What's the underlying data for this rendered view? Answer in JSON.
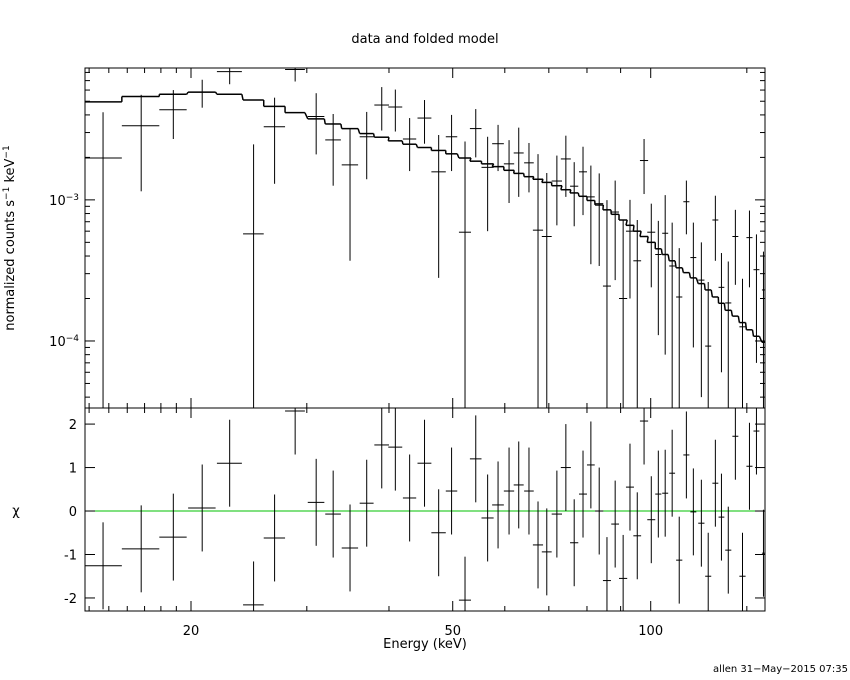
{
  "chart_data": [
    {
      "type": "errorbar",
      "title": "data and folded model",
      "ylabel": [
        {
          "text": "normalized counts s"
        },
        {
          "text": "−1",
          "sup": true
        },
        {
          "text": " keV"
        },
        {
          "text": "−1",
          "sup": true
        }
      ],
      "xscale": "log",
      "yscale": "log",
      "xlim": [
        13.8,
        149.2
      ],
      "ylim": [
        3.35e-05,
        0.0086
      ],
      "xticks": [
        20,
        50,
        100
      ],
      "xminor": [
        14,
        15,
        16,
        17,
        18,
        19,
        30,
        40,
        60,
        70,
        80,
        90,
        140
      ],
      "yticks": [
        {
          "value": 0.0001,
          "label": "10",
          "exponent": "−4"
        },
        {
          "value": 0.001,
          "label": "10",
          "exponent": "−3"
        }
      ],
      "yminor": [
        4e-05,
        5e-05,
        6e-05,
        7e-05,
        8e-05,
        9e-05,
        0.0002,
        0.0003,
        0.0004,
        0.0005,
        0.0006,
        0.0007,
        0.0008,
        0.0009,
        0.002,
        0.003,
        0.004,
        0.005,
        0.006,
        0.007,
        0.008
      ],
      "color": "#000000",
      "x": [
        14.7,
        16.8,
        18.8,
        20.8,
        22.9,
        24.9,
        26.8,
        28.8,
        31.0,
        32.9,
        34.9,
        37.0,
        39.0,
        40.9,
        43.0,
        45.3,
        47.6,
        49.8,
        52.2,
        54.2,
        56.5,
        58.6,
        60.9,
        63.0,
        65.3,
        67.4,
        69.5,
        72.0,
        74.3,
        76.5,
        78.9,
        81.1,
        83.5,
        85.8,
        88.3,
        90.8,
        93.0,
        95.4,
        97.7,
        100.2,
        102.7,
        105.2,
        107.8,
        110.5,
        113.3,
        116.1,
        119.4,
        122.3,
        125.4,
        128.1,
        131.2,
        134.5,
        137.9,
        141.3,
        144.8,
        148.4
      ],
      "xerr": [
        1.0,
        1.1,
        0.9,
        1.0,
        1.0,
        0.9,
        1.0,
        1.0,
        0.9,
        0.9,
        1.0,
        0.9,
        1.0,
        1.0,
        1.0,
        1.1,
        1.2,
        1.0,
        1.1,
        1.1,
        1.2,
        1.2,
        1.1,
        1.1,
        1.1,
        1.2,
        1.2,
        1.3,
        1.3,
        1.1,
        1.1,
        1.1,
        1.2,
        1.2,
        1.2,
        1.3,
        1.3,
        1.3,
        1.4,
        1.4,
        1.1,
        1.1,
        1.1,
        1.2,
        1.2,
        1.2,
        1.3,
        1.3,
        1.3,
        1.3,
        1.4,
        1.4,
        1.5,
        1.5,
        1.5,
        0.8
      ],
      "values": [
        0.00198,
        0.00335,
        0.00435,
        0.0058,
        0.0081,
        0.000574,
        0.0033,
        0.0084,
        0.0039,
        0.00266,
        0.00177,
        0.0028,
        0.0047,
        0.00455,
        0.0027,
        0.0038,
        0.00158,
        0.0028,
        0.00059,
        0.0032,
        0.0017,
        0.0025,
        0.0018,
        0.00215,
        0.00183,
        0.00061,
        0.00055,
        0.00136,
        0.00195,
        0.00125,
        0.00158,
        0.00105,
        0.00094,
        0.000245,
        0.00082,
        0.0002,
        0.0006,
        0.00037,
        0.0019,
        0.00059,
        0.00041,
        0.00058,
        0.00034,
        0.000205,
        0.00097,
        0.00039,
        0.00027,
        9.2e-05,
        0.00072,
        0.00024,
        0.000186,
        0.00055,
        0.000126,
        0.00054,
        0.00032,
        0.00023
      ],
      "yerr": [
        0.0022,
        0.0022,
        0.00165,
        0.0013,
        0.0015,
        0.0019,
        0.002,
        0.0015,
        0.0018,
        0.0014,
        0.0014,
        0.0014,
        0.0016,
        0.0015,
        0.0011,
        0.0013,
        0.0013,
        0.0012,
        0.002,
        0.0012,
        0.0011,
        0.0009,
        0.00085,
        0.0011,
        0.0007,
        0.0015,
        0.001,
        0.0007,
        0.0009,
        0.0006,
        0.0008,
        0.0007,
        0.0006,
        0.00075,
        0.00055,
        0.00052,
        0.0004,
        0.00035,
        0.0008,
        0.00035,
        0.0003,
        0.0005,
        0.00035,
        0.00025,
        0.0004,
        0.0003,
        0.00023,
        0.00017,
        0.00035,
        0.00018,
        0.00018,
        0.0003,
        0.00015,
        0.0003,
        0.00025,
        0.0002
      ],
      "model": [
        0.00495,
        0.0054,
        0.0056,
        0.0058,
        0.0056,
        0.0051,
        0.0046,
        0.00415,
        0.00375,
        0.00345,
        0.0032,
        0.00295,
        0.00278,
        0.00262,
        0.00248,
        0.00235,
        0.00224,
        0.00212,
        0.00198,
        0.00188,
        0.0018,
        0.00172,
        0.00162,
        0.00154,
        0.00146,
        0.0014,
        0.00133,
        0.00126,
        0.00118,
        0.00112,
        0.00106,
        0.00099,
        0.00092,
        0.00085,
        0.00079,
        0.00072,
        0.00066,
        0.0006,
        0.00055,
        0.0005,
        0.00045,
        0.00041,
        0.00037,
        0.00033,
        0.000305,
        0.00028,
        0.000255,
        0.00023,
        0.000205,
        0.000185,
        0.000165,
        0.00015,
        0.000135,
        0.00012,
        0.000108,
        9.8e-05
      ]
    },
    {
      "type": "errorbar",
      "xlabel": "Energy (keV)",
      "ylabel": "χ",
      "ylim": [
        -2.3,
        2.37
      ],
      "yticks": [
        -2,
        -1,
        0,
        1,
        2
      ],
      "reference_line": 0,
      "reference_color": "#00c000",
      "color": "#000000",
      "values": [
        -1.26,
        -0.87,
        -0.6,
        0.07,
        1.1,
        -2.16,
        -0.62,
        2.3,
        0.2,
        -0.07,
        -0.85,
        0.18,
        1.52,
        1.47,
        0.3,
        1.1,
        -0.5,
        0.46,
        -2.05,
        1.2,
        -0.16,
        0.14,
        0.46,
        0.6,
        0.46,
        -0.78,
        -0.94,
        -0.07,
        1.0,
        -0.73,
        0.39,
        1.06,
        0,
        -1.6,
        -0.3,
        -1.55,
        0.55,
        -0.57,
        2.07,
        -0.2,
        0.39,
        0.41,
        0.87,
        -1.13,
        1.29,
        -0.02,
        -0.28,
        -1.5,
        0.64,
        -0.14,
        -0.9,
        1.72,
        -1.5,
        1.03,
        1.84,
        -0.97
      ],
      "yerr": [
        1,
        1,
        1,
        1,
        1,
        1,
        1,
        1,
        1,
        1,
        1,
        1,
        1,
        1,
        1,
        1,
        1,
        1,
        1,
        1,
        1,
        1,
        1,
        1,
        1,
        1,
        1,
        1,
        1,
        1,
        1,
        1,
        1,
        1,
        1,
        1,
        1,
        1,
        1,
        1,
        1,
        1,
        1,
        1,
        1,
        1,
        1,
        1,
        1,
        1,
        1,
        1,
        1,
        1,
        1,
        1
      ]
    }
  ],
  "footer": "allen 31−May−2015 07:35"
}
